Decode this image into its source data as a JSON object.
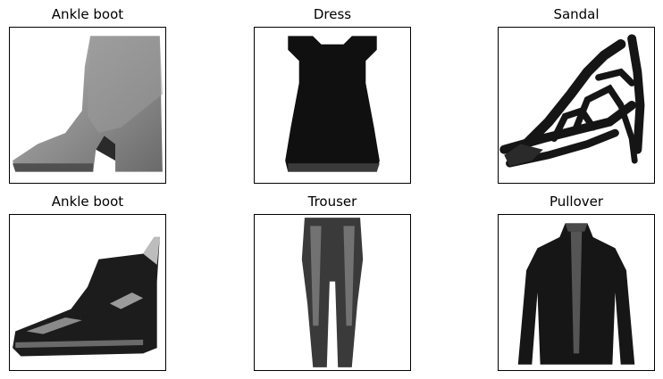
{
  "panels": [
    {
      "title": "Ankle boot",
      "icon": "ankle-boot-image"
    },
    {
      "title": "Dress",
      "icon": "dress-image"
    },
    {
      "title": "Sandal",
      "icon": "sandal-image"
    },
    {
      "title": "Ankle boot",
      "icon": "ankle-boot-dark-image"
    },
    {
      "title": "Trouser",
      "icon": "trouser-image"
    },
    {
      "title": "Pullover",
      "icon": "pullover-image"
    }
  ],
  "colors": {
    "background": "#ffffff",
    "frame": "#000000",
    "ink": "#111111"
  }
}
